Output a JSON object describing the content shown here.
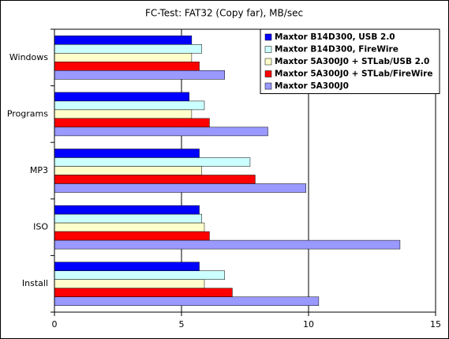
{
  "chart_data": {
    "type": "hbar",
    "title": "FC-Test: FAT32 (Copy far), MB/sec",
    "categories": [
      "Windows",
      "Programs",
      "MP3",
      "ISO",
      "Install"
    ],
    "series": [
      {
        "name": "Maxtor B14D300, USB 2.0",
        "color": "#0000ff",
        "values": [
          5.4,
          5.3,
          5.7,
          5.7,
          5.7
        ]
      },
      {
        "name": "Maxtor B14D300, FireWire",
        "color": "#ccffff",
        "values": [
          5.8,
          5.9,
          7.7,
          5.8,
          6.7
        ]
      },
      {
        "name": "Maxtor 5A300J0 + STLab/USB 2.0",
        "color": "#ffffcc",
        "values": [
          5.4,
          5.4,
          5.8,
          5.9,
          5.9
        ]
      },
      {
        "name": "Maxtor 5A300J0 + STLab/FireWire",
        "color": "#ff0000",
        "values": [
          5.7,
          6.1,
          7.9,
          6.1,
          7.0
        ]
      },
      {
        "name": "Maxtor 5A300J0",
        "color": "#9999ff",
        "values": [
          6.7,
          8.4,
          9.9,
          13.6,
          10.4
        ]
      }
    ],
    "xlim": [
      0,
      15
    ],
    "xticks": [
      0,
      5,
      10,
      15
    ],
    "grid": true,
    "legend": "top-right"
  }
}
